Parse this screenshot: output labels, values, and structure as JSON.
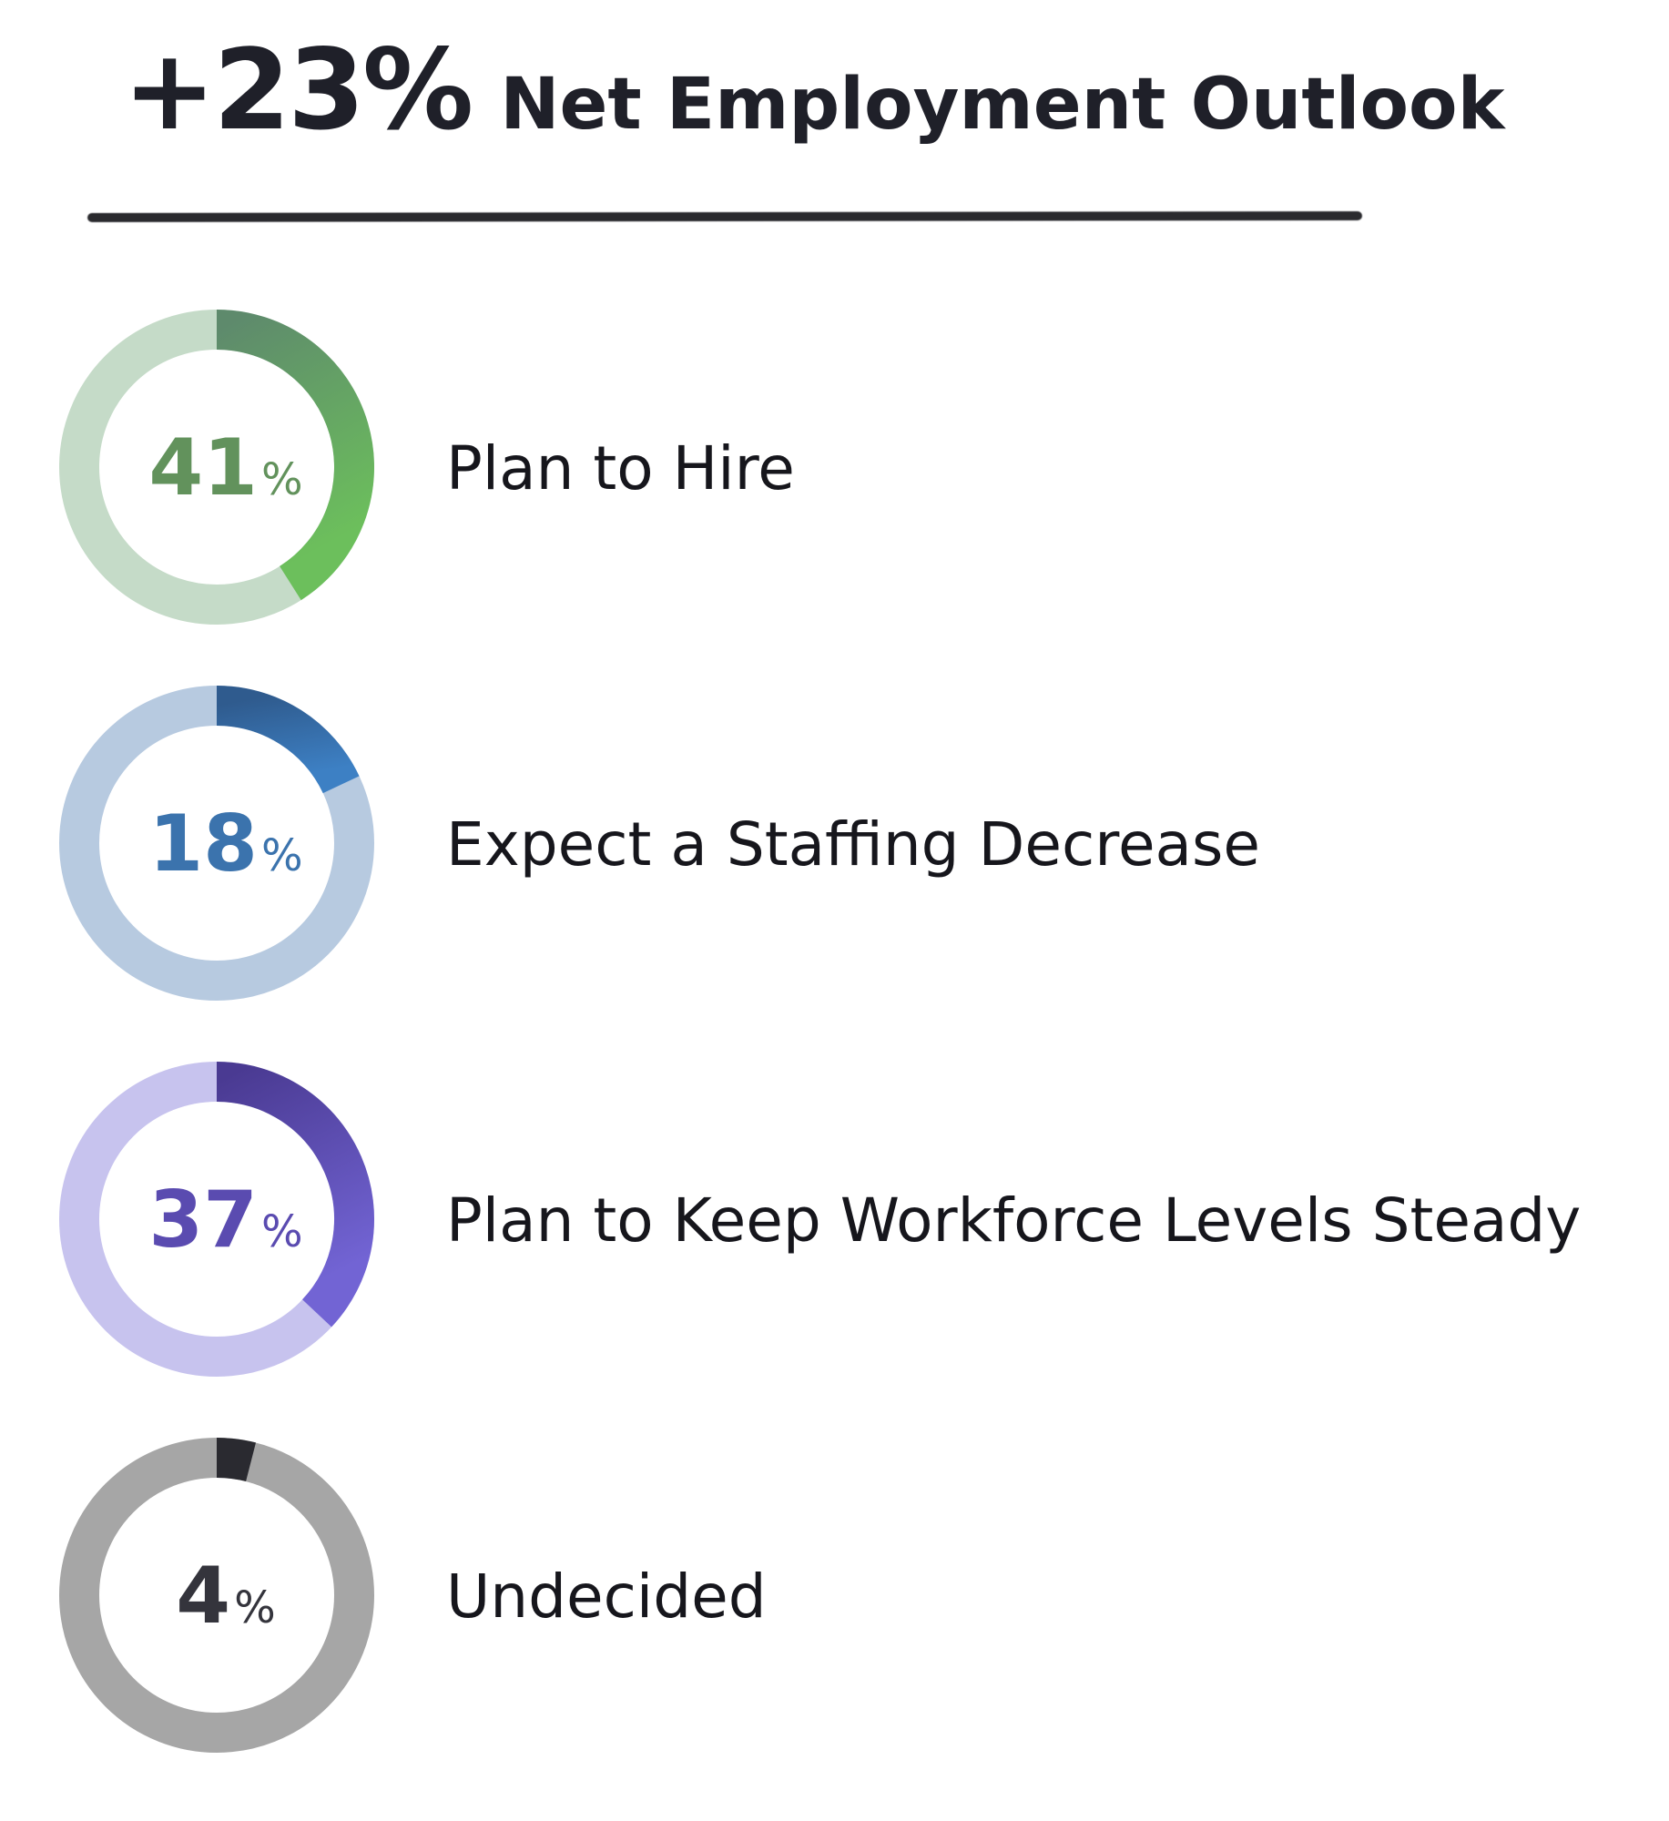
{
  "headline": {
    "value": "+23%",
    "label": "Net Employment Outlook"
  },
  "chart_data": {
    "type": "pie",
    "subtype": "donut-rows",
    "title": "Net Employment Outlook",
    "series": [
      {
        "name": "Plan to Hire",
        "value": 41,
        "value_label": "41",
        "unit": "%",
        "colors": {
          "arc_start": "#5e8a6c",
          "arc_end": "#6cbf5c",
          "track": "#c5dbc8",
          "text": "#62925c"
        }
      },
      {
        "name": "Expect a Staffing Decrease",
        "value": 18,
        "value_label": "18",
        "unit": "%",
        "colors": {
          "arc_start": "#2f5b8e",
          "arc_end": "#3d80c4",
          "track": "#b7cae0",
          "text": "#3b73ad"
        }
      },
      {
        "name": "Plan to Keep Workforce Levels Steady",
        "value": 37,
        "value_label": "37",
        "unit": "%",
        "colors": {
          "arc_start": "#4a3a92",
          "arc_end": "#7264d4",
          "track": "#c7c3ee",
          "text": "#5a4bb0"
        }
      },
      {
        "name": "Undecided",
        "value": 4,
        "value_label": "4",
        "unit": "%",
        "colors": {
          "arc_start": "#2a2a30",
          "arc_end": "#2a2a30",
          "track": "#a6a6a6",
          "text": "#34343c"
        }
      }
    ]
  }
}
